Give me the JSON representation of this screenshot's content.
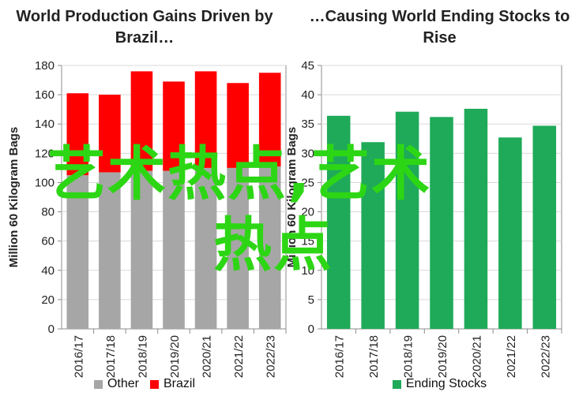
{
  "charts_titles": {
    "left": "World Production Gains Driven by Brazil…",
    "right": "…Causing World Ending Stocks to Rise"
  },
  "watermark": {
    "line1": "艺术热点,艺术",
    "line2": "热点"
  },
  "colors": {
    "other": "#a6a6a6",
    "brazil": "#ff0000",
    "ending_stocks": "#1faa59",
    "axis": "#8c8c8c",
    "grid": "#d9d9d9",
    "watermark": "#2dd614"
  },
  "chart_data": [
    {
      "type": "bar",
      "stacked": true,
      "title": "World Production Gains Driven by Brazil…",
      "ylabel": "Million 60 Kilogram Bags",
      "ylim": [
        0,
        180
      ],
      "yticks": [
        0,
        20,
        40,
        60,
        80,
        100,
        120,
        140,
        160,
        180
      ],
      "categories": [
        "2016/17",
        "2017/18",
        "2018/19",
        "2019/20",
        "2020/21",
        "2021/22",
        "2022/23"
      ],
      "series": [
        {
          "name": "Other",
          "values": [
            105,
            107,
            108,
            108,
            110,
            110,
            111
          ]
        },
        {
          "name": "Brazil",
          "values": [
            56,
            53,
            68,
            61,
            66,
            58,
            64
          ]
        }
      ],
      "grid": true,
      "legend": "bottom"
    },
    {
      "type": "bar",
      "title": "…Causing World Ending Stocks to Rise",
      "ylabel": "Million 60 Kilogram Bags",
      "ylim": [
        0,
        45
      ],
      "yticks": [
        0,
        5,
        10,
        15,
        20,
        25,
        30,
        35,
        40,
        45
      ],
      "categories": [
        "2016/17",
        "2017/18",
        "2018/19",
        "2019/20",
        "2020/21",
        "2021/22",
        "2022/23"
      ],
      "series": [
        {
          "name": "Ending Stocks",
          "values": [
            36.4,
            31.9,
            37.1,
            36.2,
            37.6,
            32.7,
            34.7
          ]
        }
      ],
      "grid": true,
      "legend": "bottom"
    }
  ]
}
